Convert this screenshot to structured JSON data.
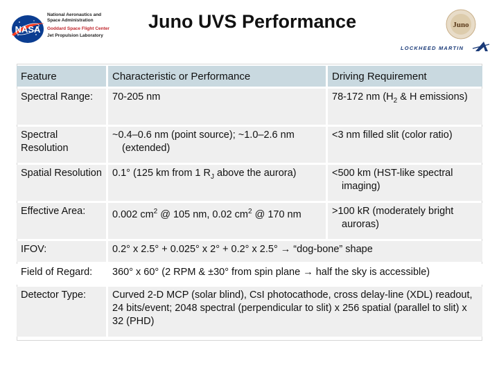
{
  "header": {
    "org_line1": "National Aeronautics and",
    "org_line2": "Space Administration",
    "center": "Goddard Space Flight Center",
    "lab": "Jet Propulsion Laboratory",
    "title": "Juno UVS Performance",
    "juno_logo_text": "Juno",
    "lm_logo_text": "LOCKHEED MARTIN",
    "nasa_logo_text": "NASA"
  },
  "table": {
    "headers": [
      "Feature",
      "Characteristic or Performance",
      "Driving Requirement"
    ],
    "rows": [
      {
        "feature": "Spectral Range:",
        "perf": "70-205 nm",
        "req_a": "78-172 nm (H",
        "req_sub": "2",
        "req_b": " & H emissions)"
      },
      {
        "feature": "Spectral Resolution",
        "perf_a": "~0.4–0.6 nm (point source); ~1.0–2.6 nm",
        "perf_b": "(extended)",
        "req": "<3 nm filled slit (color ratio)"
      },
      {
        "feature": "Spatial Resolution",
        "perf_a": "0.1° (125 km from 1 R",
        "perf_sub": "J",
        "perf_b": " above the aurora)",
        "req_a": "<500 km (HST-like spectral",
        "req_b": "imaging)"
      },
      {
        "feature": "Effective Area:",
        "perf_a": "0.002 cm",
        "perf_sup1": "2",
        "perf_b": " @ 105 nm, 0.02 cm",
        "perf_sup2": "2",
        "perf_c": " @ 170 nm",
        "req_a": ">100 kR (moderately bright",
        "req_b": "auroras)"
      },
      {
        "feature": "IFOV:",
        "perf": "0.2° x 2.5° + 0.025° x 2° + 0.2° x 2.5° →  “dog-bone” shape"
      },
      {
        "feature": "Field of Regard:",
        "perf": "360° x 60° (2 RPM & ±30° from spin plane → half the sky is accessible)"
      },
      {
        "feature": "Detector Type:",
        "perf": "Curved 2-D MCP (solar blind), CsI photocathode, cross delay-line (XDL) readout, 24 bits/event; 2048 spectral (perpendicular to slit) x 256 spatial (parallel to slit) x 32 (PHD)"
      }
    ]
  },
  "colors": {
    "header_fill": "#c9d9e0",
    "row_fill": "#efefef",
    "nasa_blue": "#0b3d91",
    "nasa_red": "#fc3d21",
    "org_red": "#c0262c",
    "lm_blue": "#1a3a78"
  }
}
